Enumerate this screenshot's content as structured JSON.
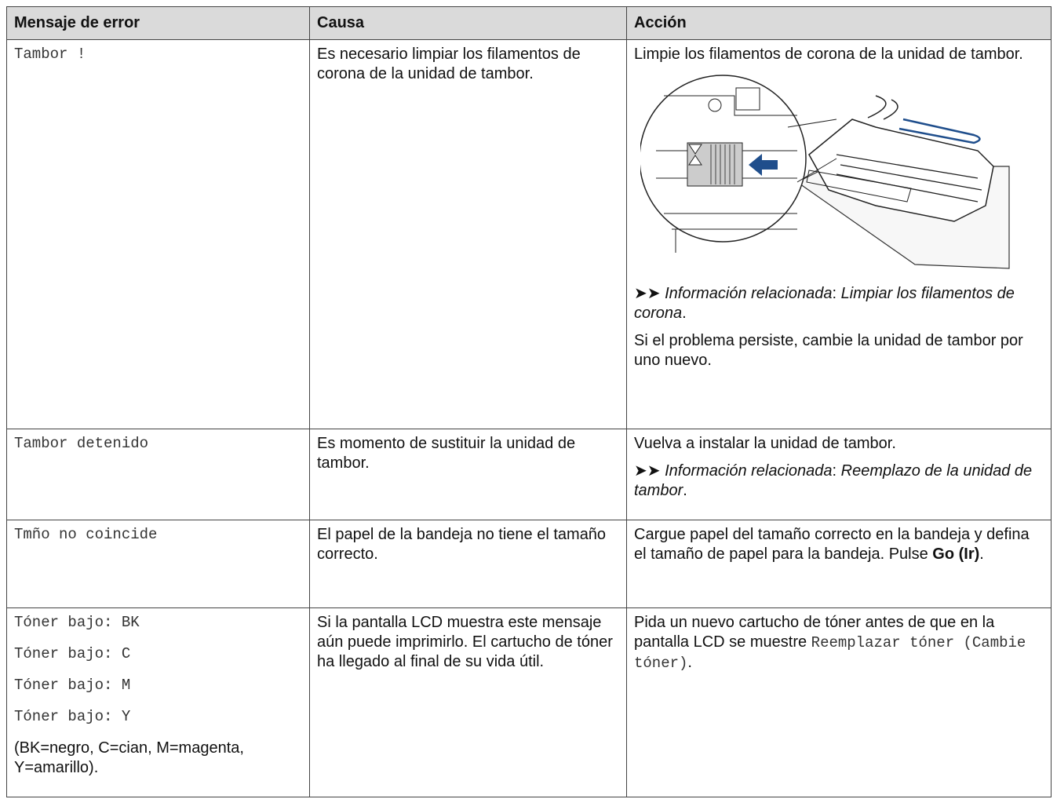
{
  "table": {
    "header": [
      "Mensaje de error",
      "Causa",
      "Acción"
    ],
    "rows": [
      {
        "message": [
          "Tambor !"
        ],
        "cause": "Es necesario limpiar los filamentos de corona de la unidad de tambor.",
        "action": {
          "text": "Limpie los filamentos de corona de la unidad de tambor.",
          "related": {
            "marker": "➤➤",
            "label": "Información relacionada",
            "separator": ": ",
            "link": "Limpiar los filamentos de corona",
            "end": "."
          },
          "note": "Si el problema persiste, cambie la unidad de tambor por uno nuevo."
        }
      },
      {
        "message": [
          "Tambor detenido"
        ],
        "cause": "Es momento de sustituir la unidad de tambor.",
        "action": {
          "text": "Vuelva a instalar la unidad de tambor.",
          "related": {
            "marker": "➤➤",
            "label": "Información relacionada",
            "separator": ": ",
            "link": "Reemplazo de la unidad de tambor",
            "end": "."
          }
        }
      },
      {
        "message": [
          "Tmño no coincide"
        ],
        "cause": "El papel de la bandeja no tiene el tamaño correcto.",
        "action": {
          "text": "Cargue papel del tamaño correcto en la bandeja y defina el tamaño de papel para la bandeja. Pulse ",
          "bold": "Go (Ir)",
          "end": "."
        }
      },
      {
        "message": [
          "Tóner bajo: BK",
          "Tóner bajo: C",
          "Tóner bajo: M",
          "Tóner bajo: Y"
        ],
        "legend": "(BK=negro, C=cian, M=magenta, Y=amarillo).",
        "cause": "Si la pantalla LCD muestra este mensaje aún puede imprimirlo. El cartucho de tóner ha llegado al final de su vida útil.",
        "action": {
          "text": "Pida un nuevo cartucho de tóner antes de que en la pantalla LCD se muestre ",
          "mono": "Reemplazar tóner (Cambie tóner)",
          "end": "."
        }
      }
    ]
  }
}
